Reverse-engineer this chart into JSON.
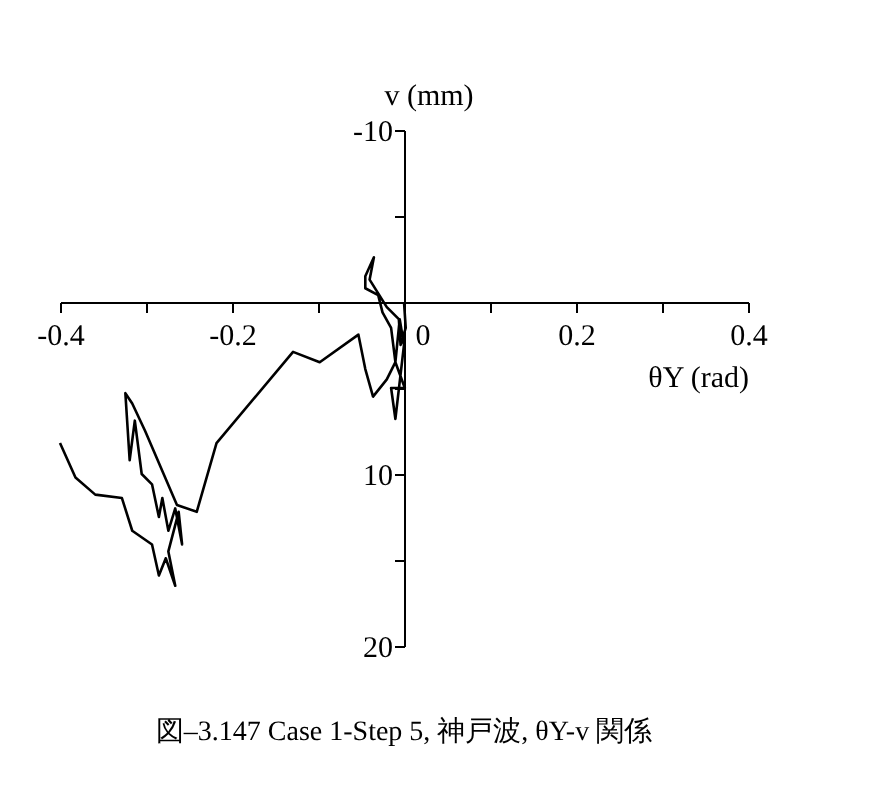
{
  "chart_data": {
    "type": "line",
    "title": "図–3.147  Case 1-Step 5, 神戸波, θY-v 関係",
    "xlabel": "θY (rad)",
    "ylabel": "v (mm)",
    "xlim": [
      -0.4,
      0.4
    ],
    "ylim": [
      20,
      -10
    ],
    "xticks": [
      -0.4,
      {
        "value": -0.3,
        "label": null
      },
      -0.2,
      {
        "value": -0.1,
        "label": null
      },
      0,
      {
        "value": 0.1,
        "label": null
      },
      0.2,
      {
        "value": 0.3,
        "label": null
      },
      0.4
    ],
    "yticks": [
      -10,
      {
        "value": -5,
        "label": null
      },
      {
        "value": 5,
        "label": null
      },
      10,
      {
        "value": 15,
        "label": null
      },
      20
    ],
    "grid": false,
    "marker": "none",
    "line_style": "solid",
    "series": [
      {
        "color": "#000000",
        "x": [
          0,
          0.002,
          -0.004,
          -0.006,
          -0.02,
          -0.03,
          -0.04,
          -0.035,
          -0.045,
          -0.045,
          -0.03,
          -0.025,
          -0.015,
          -0.01,
          -0.005,
          0,
          -0.01,
          -0.015,
          0.001,
          -0.01,
          -0.02,
          -0.036,
          -0.045,
          -0.053,
          -0.098,
          -0.129,
          -0.218,
          -0.241,
          -0.264,
          -0.301,
          -0.316,
          -0.324,
          -0.319,
          -0.313,
          -0.305,
          -0.293,
          -0.285,
          -0.281,
          -0.274,
          -0.266,
          -0.258,
          -0.262,
          -0.274,
          -0.266,
          -0.277,
          -0.285,
          -0.293,
          -0.316,
          -0.328,
          -0.359,
          -0.382,
          -0.4
        ],
        "values": [
          0,
          1.5,
          2.5,
          1,
          0.3,
          -0.5,
          -1.3,
          -2.6,
          -1.5,
          -0.8,
          -0.4,
          0.6,
          1.5,
          3.5,
          1,
          2.5,
          6.8,
          5,
          5,
          3.5,
          4.5,
          5.5,
          3.9,
          1.9,
          3.5,
          2.9,
          8.2,
          12.2,
          11.8,
          7.5,
          5.9,
          5.3,
          9.2,
          6.9,
          10.0,
          10.6,
          12.5,
          11.4,
          13.3,
          12.0,
          14.1,
          12.2,
          14.5,
          16.5,
          14.9,
          15.9,
          14.1,
          13.3,
          11.4,
          11.2,
          10.2,
          8.2
        ]
      }
    ]
  }
}
